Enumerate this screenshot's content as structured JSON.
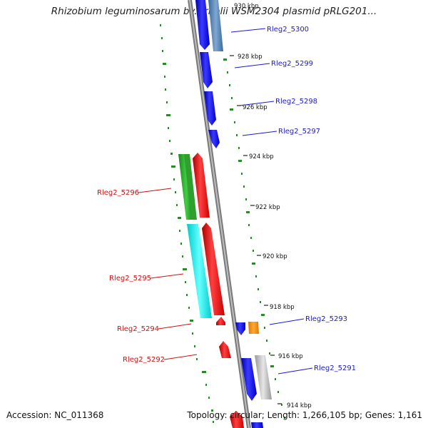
{
  "title": "Rhizobium leguminosarum bv. trifolii WSM2304 plasmid pRLG201...",
  "accession": "Accession: NC_011368",
  "summary": "Topology: circular; Length: 1,266,105 bp; Genes: 1,161",
  "ticks": [
    "930 kbp",
    "928 kbp",
    "926 kbp",
    "924 kbp",
    "922 kbp",
    "920 kbp",
    "918 kbp",
    "916 kbp",
    "914 kbp"
  ],
  "genes_forward": [
    "Rleg2_5300",
    "Rleg2_5299",
    "Rleg2_5298",
    "Rleg2_5297",
    "Rleg2_5293",
    "Rleg2_5291"
  ],
  "genes_reverse": [
    "Rleg2_5296",
    "Rleg2_5295",
    "Rleg2_5294",
    "Rleg2_5292"
  ],
  "colors": {
    "forward_cds": "#1010e0",
    "reverse_cds": "#ee1111",
    "forward_label": "#1a1acc",
    "reverse_label": "#cc1111",
    "backbone": "#808080",
    "gc_dots": "#2a8a2a"
  }
}
